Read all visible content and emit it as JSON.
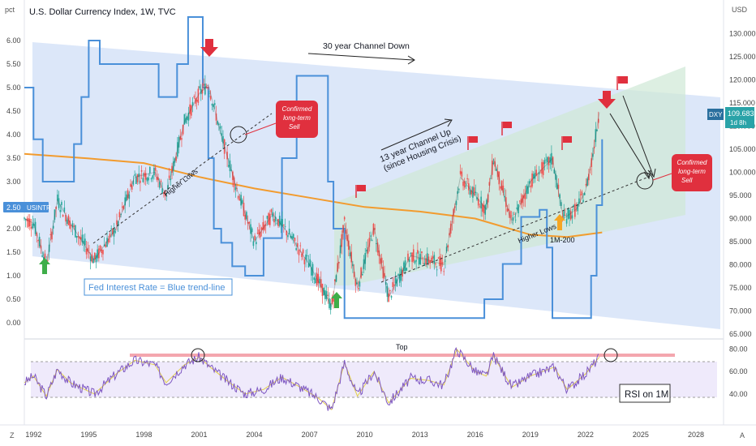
{
  "chart_data": {
    "type": "line",
    "header": {
      "title": "U.S. Dollar Currency Index, 1W, TVC",
      "left_unit": "pct",
      "right_unit": "USD",
      "bottom_left_marker": "Z",
      "bottom_right_marker": "A"
    },
    "x_axis": {
      "range": [
        1991.5,
        2029.5
      ],
      "ticks": [
        "1992",
        "1995",
        "1998",
        "2001",
        "2004",
        "2007",
        "2010",
        "2013",
        "2016",
        "2019",
        "2022",
        "2025",
        "2028"
      ],
      "tick_values": [
        1992,
        1995,
        1998,
        2001,
        2004,
        2007,
        2010,
        2013,
        2016,
        2019,
        2022,
        2025,
        2028
      ]
    },
    "left_axis": {
      "ticks": [
        "6.00",
        "5.50",
        "5.00",
        "4.50",
        "4.00",
        "3.50",
        "3.00",
        "2.50",
        "2.00",
        "1.50",
        "1.00",
        "0.50",
        "0.00"
      ],
      "tick_values": [
        6.0,
        5.5,
        5.0,
        4.5,
        4.0,
        3.5,
        3.0,
        2.5,
        2.0,
        1.5,
        1.0,
        0.5,
        0.0
      ],
      "badge_value": "2.50",
      "badge_label": "USINTR"
    },
    "right_axis": {
      "ticks": [
        "130.000",
        "125.000",
        "120.000",
        "115.000",
        "110.000",
        "105.000",
        "100.000",
        "95.000",
        "90.000",
        "85.000",
        "80.000",
        "75.000",
        "70.000",
        "65.000"
      ],
      "tick_values": [
        130,
        125,
        120,
        115,
        110,
        105,
        100,
        95,
        90,
        85,
        80,
        75,
        70,
        65
      ],
      "price_symbol": "DXY",
      "price_value": "109.683",
      "price_countdown": "1d 8h"
    },
    "rsi_axis": {
      "ticks": [
        "80.00",
        "60.00",
        "40.00"
      ],
      "tick_values": [
        80,
        60,
        40
      ]
    },
    "series": [
      {
        "name": "DXY",
        "color": "#2b2b2b",
        "x": [
          1991.5,
          1992.0,
          1992.7,
          1993.3,
          1994.0,
          1995.3,
          1996.5,
          1997.5,
          1998.6,
          1999.2,
          2000.2,
          2001.0,
          2001.5,
          2002.2,
          2003.0,
          2004.0,
          2005.0,
          2006.0,
          2007.0,
          2008.2,
          2008.9,
          2009.6,
          2010.5,
          2011.3,
          2012.5,
          2013.5,
          2014.3,
          2015.2,
          2016.0,
          2016.6,
          2017.0,
          2018.0,
          2019.0,
          2020.2,
          2020.8,
          2021.5,
          2022.0,
          2022.4,
          2022.75
        ],
        "values": [
          90,
          89,
          80,
          94,
          89,
          81,
          88,
          99,
          100,
          95,
          111,
          117,
          119,
          108,
          97,
          85,
          91,
          86,
          80,
          71,
          89,
          75,
          88,
          73,
          82,
          81,
          80,
          99,
          95,
          92,
          103,
          89,
          98,
          103,
          90,
          92,
          96,
          104,
          113
        ]
      },
      {
        "name": "USINTR",
        "color": "#4a90d9",
        "x": [
          1991.5,
          1992.0,
          1992.5,
          1993.9,
          1994.2,
          1994.6,
          1995.0,
          1995.6,
          1997.3,
          1998.8,
          1999.3,
          1999.8,
          2000.4,
          2000.9,
          2001.2,
          2001.5,
          2001.8,
          2002.2,
          2002.8,
          2003.5,
          2004.5,
          2005.5,
          2006.3,
          2007.6,
          2008.0,
          2008.3,
          2008.9,
          2015.8,
          2016.5,
          2017.5,
          2018.5,
          2019.5,
          2019.9,
          2020.2,
          2022.0,
          2022.3,
          2022.6,
          2022.9
        ],
        "values": [
          5.0,
          3.9,
          3.0,
          3.0,
          3.8,
          4.8,
          6.0,
          5.5,
          5.5,
          4.8,
          4.8,
          5.5,
          6.5,
          6.5,
          5.0,
          3.5,
          2.0,
          1.7,
          1.2,
          1.0,
          1.8,
          3.5,
          5.25,
          5.25,
          3.0,
          2.0,
          0.1,
          0.1,
          0.5,
          1.25,
          2.25,
          2.4,
          1.6,
          0.1,
          0.1,
          1.0,
          2.5,
          3.9
        ]
      },
      {
        "name": "1M-200",
        "color": "#f29b2e",
        "x": [
          1991.5,
          1995.0,
          1998.0,
          2001.0,
          2004.0,
          2007.0,
          2010.0,
          2013.0,
          2016.0,
          2019.0,
          2021.0,
          2022.9
        ],
        "values": [
          104,
          103,
          102,
          99,
          96.5,
          94.5,
          92.5,
          91.5,
          90,
          86.5,
          86,
          87
        ]
      }
    ],
    "rsi": {
      "name": "RSI on 1M",
      "x": [
        1991.5,
        1992.0,
        1992.7,
        1993.3,
        1994.0,
        1995.3,
        1996.5,
        1997.5,
        1998.6,
        1999.2,
        2000.2,
        2001.0,
        2001.6,
        2002.5,
        2003.5,
        2004.5,
        2005.5,
        2006.5,
        2007.5,
        2008.2,
        2008.9,
        2009.6,
        2010.5,
        2011.3,
        2012.5,
        2013.5,
        2014.3,
        2015.0,
        2016.0,
        2016.6,
        2017.0,
        2018.0,
        2019.0,
        2020.3,
        2021.0,
        2022.0,
        2022.75
      ],
      "values": [
        50,
        56,
        38,
        62,
        50,
        40,
        58,
        70,
        66,
        50,
        66,
        73,
        64,
        52,
        40,
        44,
        55,
        46,
        36,
        26,
        68,
        38,
        60,
        32,
        54,
        52,
        48,
        80,
        60,
        56,
        74,
        46,
        56,
        64,
        44,
        58,
        73
      ],
      "signal_color": "#e3d04a",
      "line_color": "#7e57c2"
    },
    "annotations": {
      "channel_down": "30 year Channel Down",
      "channel_up_line1": "13 year Channel Up",
      "channel_up_line2": "(since Housing Crisis)",
      "higher_lows_left": "Higher Lows",
      "higher_lows_right": "Higher Lows",
      "ma_label": "1M-200",
      "fed_rate": "Fed Interest Rate = Blue trend-line",
      "sell_box_1_line1": "Confirmed",
      "sell_box_1_line2": "long-term",
      "sell_box_1_line3": "Sell",
      "sell_box_2_line1": "Confirmed",
      "sell_box_2_line2": "long-term",
      "sell_box_2_line3": "Sell",
      "top_label": "Top",
      "rsi_label": "RSI on 1M"
    },
    "colors": {
      "channel_down_fill": "#c9daf6",
      "channel_up_fill": "#cfe8d6",
      "rate_line": "#4a90d9",
      "ma_line": "#f29b2e",
      "sell_box": "#e0303e",
      "flag": "#e0303e",
      "arrow_up_green": "#3fae49",
      "arrow_up_orange": "#f5a623"
    }
  }
}
